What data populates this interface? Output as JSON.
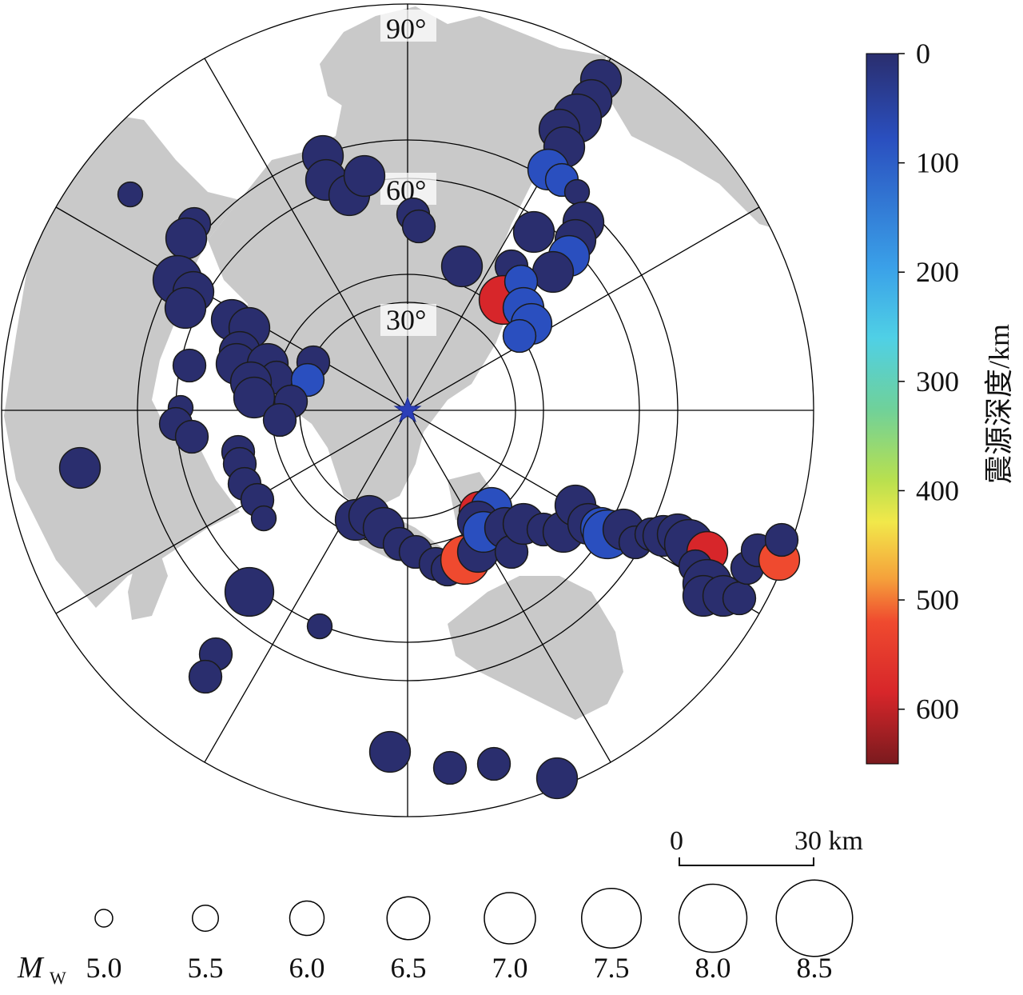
{
  "map": {
    "center_marker": "blue-star",
    "ring_labels": [
      "30°",
      "60°",
      "90°"
    ],
    "land_color": "#c8c8c8",
    "ring_color": "#000000"
  },
  "colorbar": {
    "label": "震源深度/km",
    "ticks": [
      "0",
      "100",
      "200",
      "300",
      "400",
      "500",
      "600"
    ],
    "range_km": [
      0,
      650
    ],
    "colors": [
      "#2a2e6e",
      "#2a4fbf",
      "#3aa0e8",
      "#4fd0e6",
      "#6fd19a",
      "#b8e04f",
      "#f2e84a",
      "#f5a03b",
      "#ef4a2f",
      "#d7262a",
      "#7a1a1e"
    ]
  },
  "scalebar": {
    "start_label": "0",
    "end_label": "30 km"
  },
  "magnitude_legend": {
    "symbol": "M",
    "subscript": "W",
    "values": [
      "5.0",
      "5.5",
      "6.0",
      "6.5",
      "7.0",
      "7.5",
      "8.0",
      "8.5"
    ]
  }
}
